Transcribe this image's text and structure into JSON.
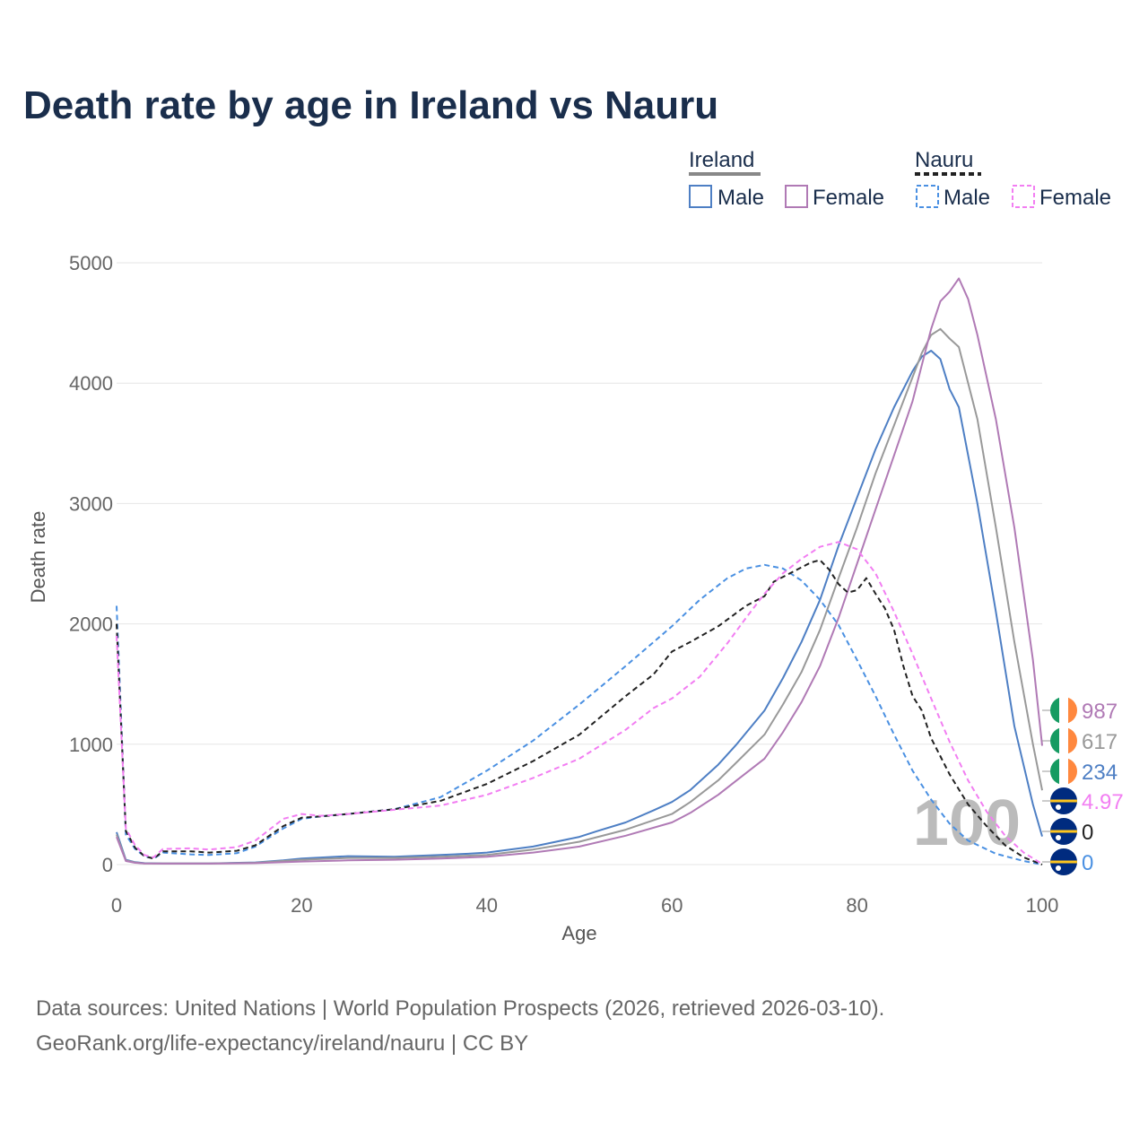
{
  "title": "Death rate by age in Ireland vs Nauru",
  "legend": {
    "groups": [
      {
        "name": "Ireland",
        "items": [
          "Male",
          "Female"
        ]
      },
      {
        "name": "Nauru",
        "items": [
          "Male",
          "Female"
        ]
      }
    ]
  },
  "axes": {
    "xlabel": "Age",
    "ylabel": "Death rate",
    "xticks": [
      "0",
      "20",
      "40",
      "60",
      "80",
      "100"
    ],
    "yticks": [
      "0",
      "1000",
      "2000",
      "3000",
      "4000",
      "5000"
    ]
  },
  "watermark": "100",
  "end_labels": [
    {
      "value": "987",
      "color": "#b07ab5",
      "flag": "ireland"
    },
    {
      "value": "617",
      "color": "#999999",
      "flag": "ireland"
    },
    {
      "value": "234",
      "color": "#4e7fc4",
      "flag": "ireland"
    },
    {
      "value": "4.97",
      "color": "#f27ef2",
      "flag": "nauru"
    },
    {
      "value": "0",
      "color": "#222222",
      "flag": "nauru"
    },
    {
      "value": "0",
      "color": "#4a90e2",
      "flag": "nauru"
    }
  ],
  "source": {
    "line1": "Data sources: United Nations | World Population Prospects (2026, retrieved 2026-03-10).",
    "line2": "GeoRank.org/life-expectancy/ireland/nauru | CC BY"
  },
  "chart_data": {
    "type": "line",
    "title": "Death rate by age in Ireland vs Nauru",
    "xlabel": "Age",
    "ylabel": "Death rate",
    "xlim": [
      0,
      100
    ],
    "ylim": [
      0,
      5000
    ],
    "series": [
      {
        "name": "Ireland Male",
        "color": "#4e7fc4",
        "dash": false,
        "width": 2,
        "points": [
          [
            0,
            270
          ],
          [
            1,
            40
          ],
          [
            2,
            20
          ],
          [
            3,
            12
          ],
          [
            5,
            10
          ],
          [
            10,
            10
          ],
          [
            15,
            18
          ],
          [
            18,
            35
          ],
          [
            20,
            50
          ],
          [
            25,
            70
          ],
          [
            30,
            65
          ],
          [
            35,
            80
          ],
          [
            38,
            90
          ],
          [
            40,
            100
          ],
          [
            45,
            150
          ],
          [
            50,
            230
          ],
          [
            52,
            280
          ],
          [
            55,
            350
          ],
          [
            58,
            450
          ],
          [
            60,
            520
          ],
          [
            62,
            620
          ],
          [
            65,
            830
          ],
          [
            67,
            1000
          ],
          [
            70,
            1280
          ],
          [
            72,
            1550
          ],
          [
            74,
            1850
          ],
          [
            76,
            2200
          ],
          [
            78,
            2650
          ],
          [
            80,
            3050
          ],
          [
            82,
            3450
          ],
          [
            84,
            3800
          ],
          [
            86,
            4100
          ],
          [
            87,
            4220
          ],
          [
            88,
            4270
          ],
          [
            89,
            4200
          ],
          [
            90,
            3950
          ],
          [
            91,
            3800
          ],
          [
            93,
            3000
          ],
          [
            95,
            2100
          ],
          [
            97,
            1150
          ],
          [
            99,
            500
          ],
          [
            100,
            234
          ]
        ]
      },
      {
        "name": "Ireland Both",
        "color": "#999999",
        "dash": false,
        "width": 2,
        "points": [
          [
            0,
            250
          ],
          [
            1,
            35
          ],
          [
            2,
            18
          ],
          [
            3,
            10
          ],
          [
            5,
            9
          ],
          [
            10,
            9
          ],
          [
            15,
            15
          ],
          [
            20,
            40
          ],
          [
            25,
            55
          ],
          [
            30,
            55
          ],
          [
            35,
            65
          ],
          [
            40,
            80
          ],
          [
            45,
            125
          ],
          [
            50,
            190
          ],
          [
            55,
            290
          ],
          [
            60,
            420
          ],
          [
            62,
            520
          ],
          [
            65,
            700
          ],
          [
            67,
            850
          ],
          [
            70,
            1080
          ],
          [
            72,
            1330
          ],
          [
            74,
            1600
          ],
          [
            76,
            1950
          ],
          [
            78,
            2380
          ],
          [
            80,
            2800
          ],
          [
            82,
            3250
          ],
          [
            84,
            3650
          ],
          [
            86,
            4050
          ],
          [
            87,
            4250
          ],
          [
            88,
            4400
          ],
          [
            89,
            4450
          ],
          [
            90,
            4370
          ],
          [
            91,
            4300
          ],
          [
            93,
            3700
          ],
          [
            95,
            2800
          ],
          [
            97,
            1850
          ],
          [
            99,
            1000
          ],
          [
            100,
            617
          ]
        ]
      },
      {
        "name": "Ireland Female",
        "color": "#b07ab5",
        "dash": false,
        "width": 2,
        "points": [
          [
            0,
            230
          ],
          [
            1,
            30
          ],
          [
            2,
            15
          ],
          [
            3,
            9
          ],
          [
            5,
            8
          ],
          [
            10,
            8
          ],
          [
            15,
            12
          ],
          [
            20,
            25
          ],
          [
            25,
            35
          ],
          [
            30,
            40
          ],
          [
            35,
            50
          ],
          [
            40,
            65
          ],
          [
            45,
            100
          ],
          [
            50,
            150
          ],
          [
            55,
            240
          ],
          [
            60,
            350
          ],
          [
            62,
            430
          ],
          [
            65,
            580
          ],
          [
            67,
            700
          ],
          [
            70,
            880
          ],
          [
            72,
            1100
          ],
          [
            74,
            1350
          ],
          [
            76,
            1650
          ],
          [
            78,
            2050
          ],
          [
            80,
            2500
          ],
          [
            82,
            2950
          ],
          [
            84,
            3400
          ],
          [
            86,
            3850
          ],
          [
            87,
            4150
          ],
          [
            88,
            4450
          ],
          [
            89,
            4680
          ],
          [
            90,
            4760
          ],
          [
            91,
            4870
          ],
          [
            92,
            4700
          ],
          [
            93,
            4400
          ],
          [
            95,
            3700
          ],
          [
            97,
            2800
          ],
          [
            99,
            1700
          ],
          [
            100,
            987
          ]
        ]
      },
      {
        "name": "Nauru Male",
        "color": "#4a90e2",
        "dash": true,
        "width": 2,
        "points": [
          [
            0,
            2150
          ],
          [
            1,
            250
          ],
          [
            2,
            130
          ],
          [
            3,
            70
          ],
          [
            4,
            50
          ],
          [
            5,
            100
          ],
          [
            8,
            85
          ],
          [
            10,
            80
          ],
          [
            13,
            95
          ],
          [
            15,
            150
          ],
          [
            18,
            300
          ],
          [
            20,
            380
          ],
          [
            22,
            400
          ],
          [
            25,
            420
          ],
          [
            30,
            460
          ],
          [
            35,
            560
          ],
          [
            40,
            780
          ],
          [
            45,
            1030
          ],
          [
            50,
            1330
          ],
          [
            55,
            1650
          ],
          [
            60,
            1980
          ],
          [
            63,
            2200
          ],
          [
            66,
            2380
          ],
          [
            68,
            2460
          ],
          [
            70,
            2490
          ],
          [
            72,
            2460
          ],
          [
            74,
            2360
          ],
          [
            76,
            2200
          ],
          [
            78,
            1990
          ],
          [
            80,
            1700
          ],
          [
            82,
            1400
          ],
          [
            84,
            1080
          ],
          [
            86,
            780
          ],
          [
            88,
            540
          ],
          [
            90,
            340
          ],
          [
            92,
            200
          ],
          [
            95,
            90
          ],
          [
            98,
            30
          ],
          [
            100,
            0
          ]
        ]
      },
      {
        "name": "Nauru Both",
        "color": "#222222",
        "dash": true,
        "width": 2,
        "points": [
          [
            0,
            2000
          ],
          [
            1,
            280
          ],
          [
            2,
            140
          ],
          [
            3,
            70
          ],
          [
            4,
            50
          ],
          [
            5,
            110
          ],
          [
            8,
            110
          ],
          [
            10,
            100
          ],
          [
            13,
            115
          ],
          [
            15,
            160
          ],
          [
            18,
            320
          ],
          [
            20,
            390
          ],
          [
            22,
            400
          ],
          [
            25,
            420
          ],
          [
            30,
            460
          ],
          [
            35,
            530
          ],
          [
            40,
            670
          ],
          [
            45,
            860
          ],
          [
            50,
            1080
          ],
          [
            55,
            1400
          ],
          [
            58,
            1580
          ],
          [
            60,
            1770
          ],
          [
            62,
            1850
          ],
          [
            65,
            1980
          ],
          [
            68,
            2150
          ],
          [
            70,
            2230
          ],
          [
            71,
            2350
          ],
          [
            73,
            2430
          ],
          [
            75,
            2510
          ],
          [
            76,
            2530
          ],
          [
            77,
            2450
          ],
          [
            78,
            2330
          ],
          [
            79,
            2260
          ],
          [
            80,
            2280
          ],
          [
            81,
            2380
          ],
          [
            82,
            2250
          ],
          [
            83,
            2130
          ],
          [
            84,
            1950
          ],
          [
            85,
            1650
          ],
          [
            86,
            1400
          ],
          [
            87,
            1280
          ],
          [
            88,
            1050
          ],
          [
            90,
            750
          ],
          [
            92,
            500
          ],
          [
            94,
            320
          ],
          [
            96,
            160
          ],
          [
            98,
            60
          ],
          [
            100,
            0
          ]
        ]
      },
      {
        "name": "Nauru Female",
        "color": "#f27ef2",
        "dash": true,
        "width": 2,
        "points": [
          [
            0,
            1900
          ],
          [
            1,
            300
          ],
          [
            2,
            160
          ],
          [
            3,
            80
          ],
          [
            4,
            60
          ],
          [
            5,
            130
          ],
          [
            8,
            135
          ],
          [
            10,
            125
          ],
          [
            13,
            145
          ],
          [
            15,
            200
          ],
          [
            18,
            380
          ],
          [
            20,
            420
          ],
          [
            22,
            405
          ],
          [
            25,
            420
          ],
          [
            30,
            455
          ],
          [
            35,
            490
          ],
          [
            40,
            580
          ],
          [
            45,
            720
          ],
          [
            50,
            880
          ],
          [
            55,
            1120
          ],
          [
            58,
            1300
          ],
          [
            60,
            1380
          ],
          [
            63,
            1560
          ],
          [
            66,
            1840
          ],
          [
            68,
            2050
          ],
          [
            70,
            2250
          ],
          [
            72,
            2420
          ],
          [
            74,
            2540
          ],
          [
            76,
            2640
          ],
          [
            78,
            2680
          ],
          [
            80,
            2620
          ],
          [
            82,
            2420
          ],
          [
            84,
            2100
          ],
          [
            86,
            1750
          ],
          [
            88,
            1380
          ],
          [
            90,
            1020
          ],
          [
            92,
            700
          ],
          [
            94,
            440
          ],
          [
            96,
            240
          ],
          [
            98,
            100
          ],
          [
            100,
            5
          ]
        ]
      }
    ]
  }
}
